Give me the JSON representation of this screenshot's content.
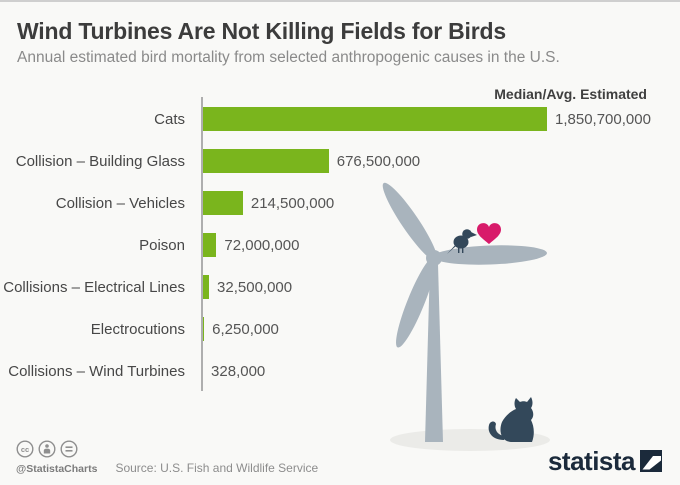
{
  "header": {
    "title": "Wind Turbines Are Not Killing Fields for Birds",
    "subtitle": "Annual estimated bird mortality from selected anthropogenic causes in the U.S."
  },
  "chart": {
    "value_header": "Median/Avg. Estimated"
  },
  "chart_data": {
    "type": "bar",
    "orientation": "horizontal",
    "title": "Wind Turbines Are Not Killing Fields for Birds",
    "subtitle": "Annual estimated bird mortality from selected anthropogenic causes in the U.S.",
    "value_axis_label": "Median/Avg. Estimated",
    "categories": [
      "Cats",
      "Collision – Building Glass",
      "Collision – Vehicles",
      "Poison",
      "Collisions – Electrical Lines",
      "Electrocutions",
      "Collisions – Wind Turbines"
    ],
    "values": [
      1850700000,
      676500000,
      214500000,
      72000000,
      32500000,
      6250000,
      328000
    ],
    "value_labels": [
      "1,850,700,000",
      "676,500,000",
      "214,500,000",
      "72,000,000",
      "32,500,000",
      "6,250,000",
      "328,000"
    ],
    "xlim": [
      0,
      1850700000
    ],
    "grid": false,
    "legend": false
  },
  "colors": {
    "bar_green": "#7ab51d",
    "navy_silhouette": "#33485a",
    "turbine_gray": "#a9b4bd",
    "heart_pink": "#d81b6a",
    "background": "#f9f9f7",
    "brand_navy": "#1b2a3b"
  },
  "illustration": {
    "description": "wind turbine with bird, heart and cat",
    "icons": [
      "wind-turbine-icon",
      "bird-icon",
      "heart-icon",
      "cat-icon"
    ]
  },
  "footer": {
    "license": "Creative Commons",
    "license_icons": [
      "cc-icon",
      "attribution-icon",
      "equals-icon"
    ],
    "handle": "@StatistaCharts",
    "source": "Source: U.S. Fish and Wildlife Service",
    "brand": "statista"
  }
}
